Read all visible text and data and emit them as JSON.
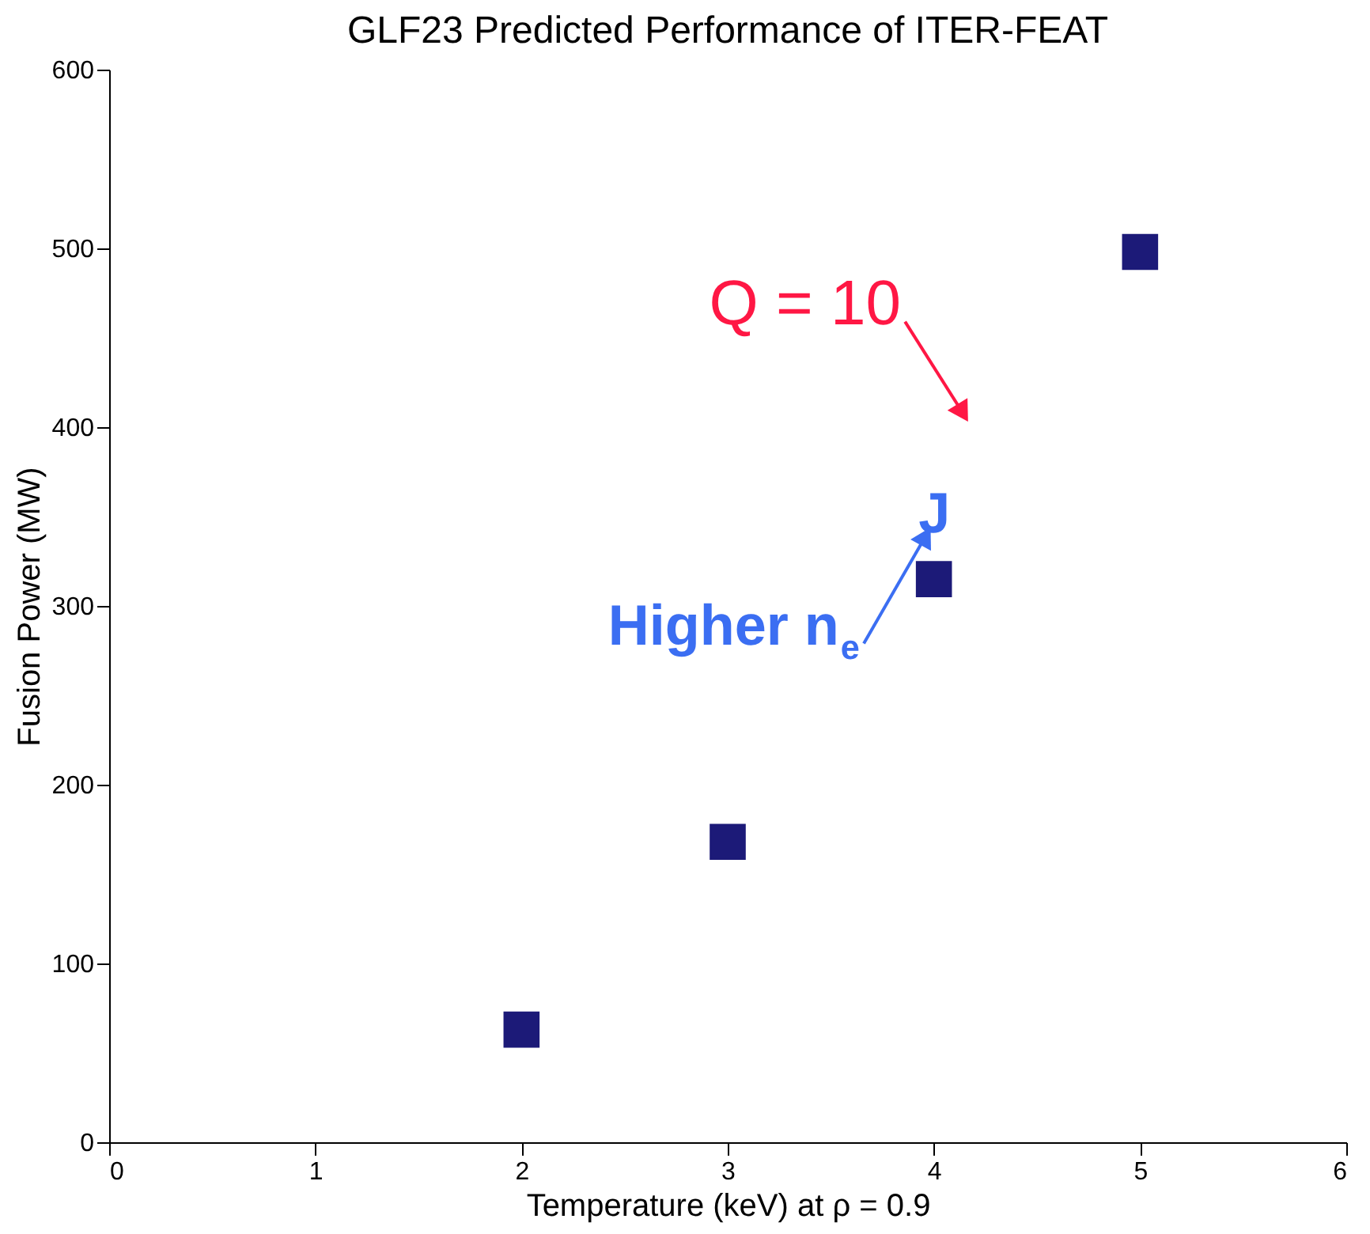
{
  "chart_data": {
    "type": "scatter",
    "title": "GLF23 Predicted Performance of ITER-FEAT",
    "xlabel": "Temperature (keV) at ρ = 0.9",
    "ylabel": "Fusion Power (MW)",
    "x": [
      2,
      3,
      4,
      5
    ],
    "series": [
      {
        "color": "#1c1a78",
        "values": [
          63,
          168,
          315,
          498
        ]
      }
    ],
    "marker": "square",
    "xlim": [
      0,
      6
    ],
    "xticks": [
      0,
      1,
      2,
      3,
      4,
      5,
      6
    ],
    "ylim": [
      0,
      600
    ],
    "yticks": [
      0,
      100,
      200,
      300,
      400,
      500,
      600
    ],
    "grid": false,
    "annotations": [
      "Q = 10",
      "Higher n$_{e}$",
      "J"
    ]
  }
}
